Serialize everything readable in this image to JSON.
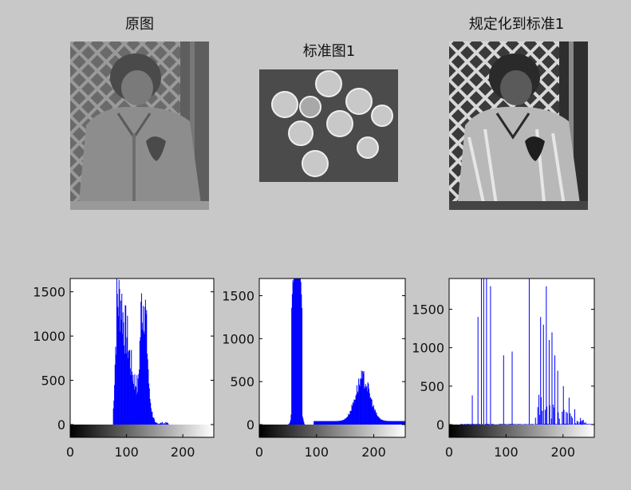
{
  "images": [
    {
      "title": "原图",
      "kind": "child-original"
    },
    {
      "title": "标准图1",
      "kind": "coins"
    },
    {
      "title": "规定化到标准1",
      "kind": "child-specified"
    }
  ],
  "chart_data": [
    {
      "type": "bar",
      "subplot": "histogram-original",
      "xlim": [
        0,
        255
      ],
      "ylim": [
        0,
        1650
      ],
      "xticks": [
        0,
        100,
        200
      ],
      "yticks": [
        0,
        500,
        1000,
        1500
      ],
      "x_range": [
        75,
        150
      ],
      "peaks": [
        {
          "x": 82,
          "y": 1650
        },
        {
          "x": 90,
          "y": 1650
        },
        {
          "x": 95,
          "y": 1300
        },
        {
          "x": 100,
          "y": 1200
        },
        {
          "x": 105,
          "y": 900
        },
        {
          "x": 112,
          "y": 600
        },
        {
          "x": 120,
          "y": 500
        },
        {
          "x": 126,
          "y": 1600
        },
        {
          "x": 132,
          "y": 1650
        },
        {
          "x": 137,
          "y": 900
        },
        {
          "x": 140,
          "y": 400
        },
        {
          "x": 145,
          "y": 150
        }
      ],
      "colorbar": "grayscale",
      "bar_color": "#0000ff"
    },
    {
      "type": "bar",
      "subplot": "histogram-standard",
      "xlim": [
        0,
        255
      ],
      "ylim": [
        0,
        1700
      ],
      "xticks": [
        0,
        100,
        200
      ],
      "yticks": [
        0,
        500,
        1000,
        1500
      ],
      "clusters": [
        {
          "x_range": [
            50,
            78
          ],
          "peak_x": 65,
          "peak_y": 1700
        },
        {
          "x_range": [
            95,
            255
          ],
          "peak_x": 180,
          "peak_y": 520
        }
      ],
      "colorbar": "grayscale",
      "bar_color": "#0000ff"
    },
    {
      "type": "bar",
      "subplot": "histogram-specified",
      "xlim": [
        0,
        255
      ],
      "ylim": [
        0,
        1900
      ],
      "xticks": [
        0,
        100,
        200
      ],
      "yticks": [
        0,
        500,
        1000,
        1500
      ],
      "spikes": [
        {
          "x": 40,
          "y": 380
        },
        {
          "x": 50,
          "y": 1400
        },
        {
          "x": 56,
          "y": 1900
        },
        {
          "x": 60,
          "y": 1900
        },
        {
          "x": 65,
          "y": 1900
        },
        {
          "x": 72,
          "y": 1800
        },
        {
          "x": 95,
          "y": 900
        },
        {
          "x": 110,
          "y": 950
        },
        {
          "x": 140,
          "y": 1900
        },
        {
          "x": 160,
          "y": 1400
        },
        {
          "x": 165,
          "y": 1300
        },
        {
          "x": 170,
          "y": 1800
        },
        {
          "x": 175,
          "y": 1100
        },
        {
          "x": 180,
          "y": 1200
        },
        {
          "x": 185,
          "y": 900
        },
        {
          "x": 190,
          "y": 700
        },
        {
          "x": 200,
          "y": 500
        },
        {
          "x": 210,
          "y": 350
        },
        {
          "x": 220,
          "y": 200
        },
        {
          "x": 235,
          "y": 60
        }
      ],
      "colorbar": "grayscale",
      "bar_color": "#0000ff"
    }
  ]
}
